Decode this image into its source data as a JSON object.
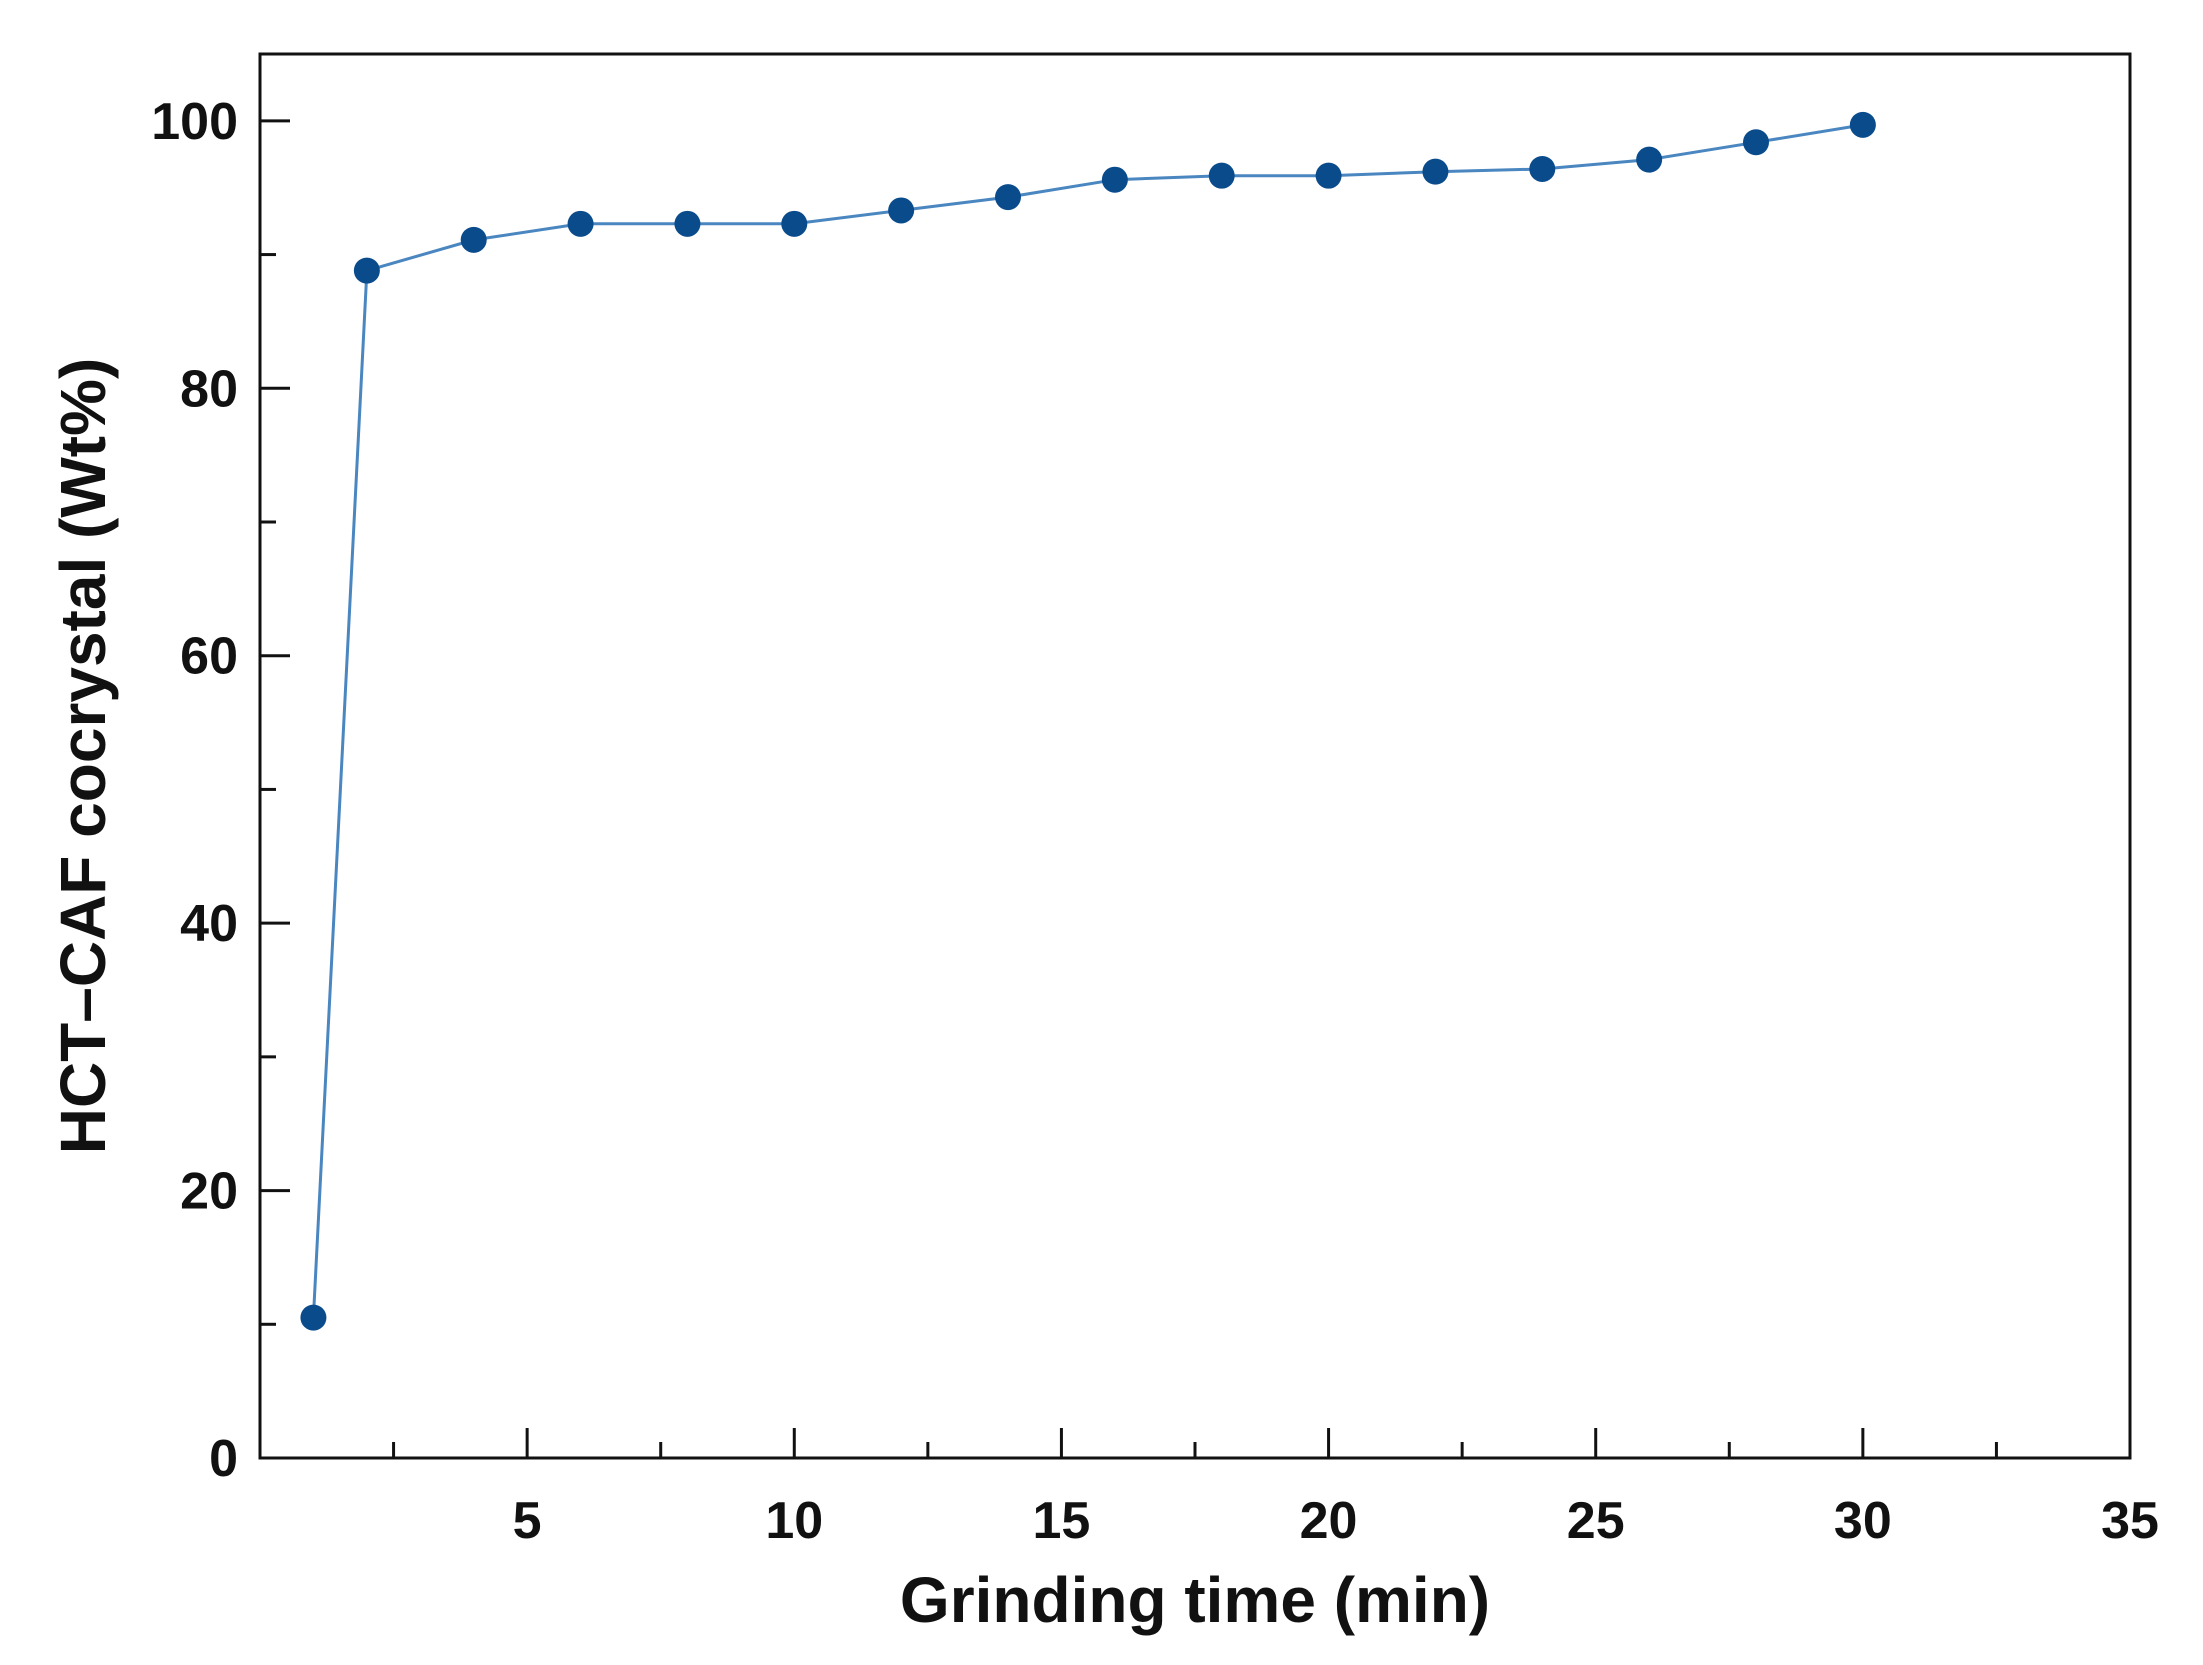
{
  "chart_data": {
    "type": "line",
    "title": "",
    "xlabel": "Grinding time (min)",
    "ylabel": "HCT–CAF  cocrystal (Wt%)",
    "xlim": [
      0,
      35
    ],
    "ylim": [
      0,
      105
    ],
    "xticks": [
      5,
      10,
      15,
      20,
      25,
      30,
      35
    ],
    "xminor": [
      2.5,
      7.5,
      12.5,
      17.5,
      22.5,
      27.5,
      32.5
    ],
    "yticks": [
      0,
      20,
      40,
      60,
      80,
      100
    ],
    "yminor": [
      10,
      30,
      50,
      70,
      90
    ],
    "grid": false,
    "series": [
      {
        "name": "HCT–CAF cocrystal",
        "color": "#0a4b8c",
        "line_color": "#4a86c0",
        "x": [
          1,
          2,
          4,
          6,
          8,
          10,
          12,
          14,
          16,
          18,
          20,
          22,
          24,
          26,
          28,
          30
        ],
        "y": [
          10.5,
          88.8,
          91.1,
          92.3,
          92.3,
          92.3,
          93.3,
          94.3,
          95.6,
          95.9,
          95.9,
          96.2,
          96.4,
          97.1,
          98.4,
          99.7
        ]
      }
    ]
  }
}
